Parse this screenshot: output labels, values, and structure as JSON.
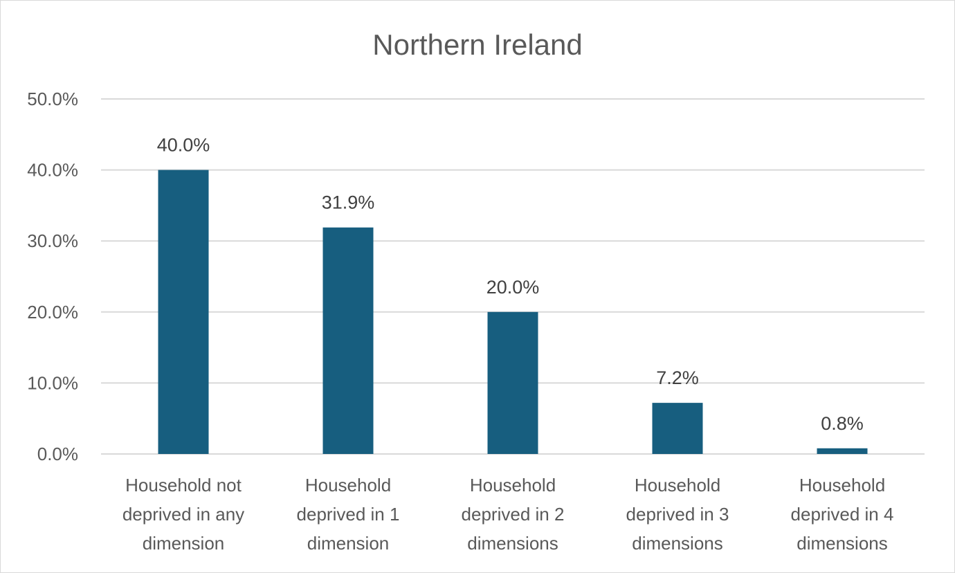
{
  "chart_data": {
    "type": "bar",
    "title": "Northern Ireland",
    "categories": [
      [
        "Household not",
        "deprived in any",
        "dimension"
      ],
      [
        "Household",
        "deprived in 1",
        "dimension"
      ],
      [
        "Household",
        "deprived in 2",
        "dimensions"
      ],
      [
        "Household",
        "deprived in 3",
        "dimensions"
      ],
      [
        "Household",
        "deprived in 4",
        "dimensions"
      ]
    ],
    "values": [
      40.0,
      31.9,
      20.0,
      7.2,
      0.8
    ],
    "data_labels": [
      "40.0%",
      "31.9%",
      "20.0%",
      "7.2%",
      "0.8%"
    ],
    "ylim": [
      0,
      50
    ],
    "yticks": [
      0,
      10,
      20,
      30,
      40,
      50
    ],
    "ytick_labels": [
      "0.0%",
      "10.0%",
      "20.0%",
      "30.0%",
      "40.0%",
      "50.0%"
    ],
    "xlabel": "",
    "ylabel": "",
    "grid": true,
    "legend": "none",
    "bar_color": "#175e7f"
  }
}
